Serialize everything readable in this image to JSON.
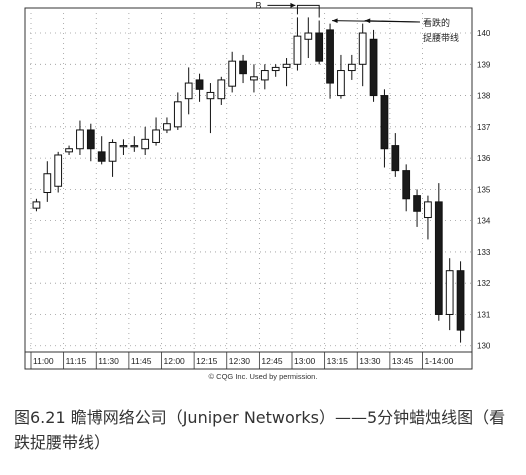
{
  "caption": "图6.21 瞻博网络公司（Juniper Networks）——5分钟蜡烛线图（看跌捉腰带线）",
  "credit": "© CQG Inc. Used by permission.",
  "annotations": {
    "b_label": "B",
    "belt_hold_line1": "看跌的",
    "belt_hold_line2": "捉腰带线"
  },
  "colors": {
    "frame": "#333333",
    "grid": "#999999",
    "bull_body": "#ffffff",
    "bear_body": "#1a1a1a"
  },
  "chart_data": {
    "type": "candlestick",
    "title": "",
    "xlabel": "",
    "ylabel": "",
    "ylim": [
      129.8,
      140.8
    ],
    "yticks": [
      130,
      131,
      132,
      133,
      134,
      135,
      136,
      137,
      138,
      139,
      140
    ],
    "xtick_labels": [
      "11:00",
      "11:15",
      "11:30",
      "11:45",
      "12:00",
      "12:15",
      "12:30",
      "12:45",
      "13:00",
      "13:15",
      "13:30",
      "13:45",
      "1-14:00"
    ],
    "grid": true,
    "candles": [
      {
        "o": 134.4,
        "h": 134.7,
        "l": 134.3,
        "c": 134.6
      },
      {
        "o": 134.9,
        "h": 135.9,
        "l": 134.6,
        "c": 135.5
      },
      {
        "o": 135.1,
        "h": 136.2,
        "l": 134.9,
        "c": 136.1
      },
      {
        "o": 136.2,
        "h": 136.4,
        "l": 136.1,
        "c": 136.3
      },
      {
        "o": 136.3,
        "h": 137.2,
        "l": 136.1,
        "c": 136.9
      },
      {
        "o": 136.9,
        "h": 137.1,
        "l": 135.9,
        "c": 136.3
      },
      {
        "o": 136.2,
        "h": 136.7,
        "l": 135.8,
        "c": 135.9
      },
      {
        "o": 135.9,
        "h": 136.6,
        "l": 135.4,
        "c": 136.5
      },
      {
        "o": 136.4,
        "h": 136.6,
        "l": 136.1,
        "c": 136.4
      },
      {
        "o": 136.4,
        "h": 136.7,
        "l": 136.2,
        "c": 136.4
      },
      {
        "o": 136.3,
        "h": 137.0,
        "l": 136.1,
        "c": 136.6
      },
      {
        "o": 136.5,
        "h": 137.3,
        "l": 136.4,
        "c": 136.9
      },
      {
        "o": 136.9,
        "h": 137.3,
        "l": 136.8,
        "c": 137.1
      },
      {
        "o": 137.0,
        "h": 138.1,
        "l": 136.9,
        "c": 137.8
      },
      {
        "o": 137.9,
        "h": 138.9,
        "l": 137.4,
        "c": 138.4
      },
      {
        "o": 138.5,
        "h": 138.7,
        "l": 137.8,
        "c": 138.2
      },
      {
        "o": 137.9,
        "h": 138.4,
        "l": 136.8,
        "c": 138.1
      },
      {
        "o": 137.9,
        "h": 138.6,
        "l": 137.7,
        "c": 138.5
      },
      {
        "o": 138.3,
        "h": 139.4,
        "l": 138.1,
        "c": 139.1
      },
      {
        "o": 139.1,
        "h": 139.3,
        "l": 138.4,
        "c": 138.7
      },
      {
        "o": 138.5,
        "h": 139.0,
        "l": 138.1,
        "c": 138.6
      },
      {
        "o": 138.5,
        "h": 139.0,
        "l": 138.2,
        "c": 138.8
      },
      {
        "o": 138.8,
        "h": 139.0,
        "l": 138.6,
        "c": 138.9
      },
      {
        "o": 138.9,
        "h": 139.2,
        "l": 138.3,
        "c": 139.0
      },
      {
        "o": 139.0,
        "h": 140.5,
        "l": 138.8,
        "c": 139.9
      },
      {
        "o": 139.8,
        "h": 140.5,
        "l": 139.2,
        "c": 140.0
      },
      {
        "o": 140.0,
        "h": 140.4,
        "l": 139.0,
        "c": 139.1
      },
      {
        "o": 140.1,
        "h": 140.3,
        "l": 137.9,
        "c": 138.4
      },
      {
        "o": 138.0,
        "h": 139.3,
        "l": 137.9,
        "c": 138.8
      },
      {
        "o": 138.8,
        "h": 139.3,
        "l": 138.5,
        "c": 139.0
      },
      {
        "o": 139.0,
        "h": 140.3,
        "l": 138.3,
        "c": 140.0
      },
      {
        "o": 139.8,
        "h": 140.1,
        "l": 137.8,
        "c": 138.0
      },
      {
        "o": 138.0,
        "h": 138.2,
        "l": 135.7,
        "c": 136.3
      },
      {
        "o": 136.4,
        "h": 136.8,
        "l": 135.4,
        "c": 135.6
      },
      {
        "o": 135.6,
        "h": 135.8,
        "l": 134.3,
        "c": 134.7
      },
      {
        "o": 134.8,
        "h": 135.0,
        "l": 133.8,
        "c": 134.3
      },
      {
        "o": 134.1,
        "h": 134.8,
        "l": 133.4,
        "c": 134.6
      },
      {
        "o": 134.6,
        "h": 135.2,
        "l": 130.8,
        "c": 131.0
      },
      {
        "o": 131.0,
        "h": 132.8,
        "l": 130.5,
        "c": 132.4
      },
      {
        "o": 132.4,
        "h": 132.7,
        "l": 130.1,
        "c": 130.5
      }
    ]
  }
}
